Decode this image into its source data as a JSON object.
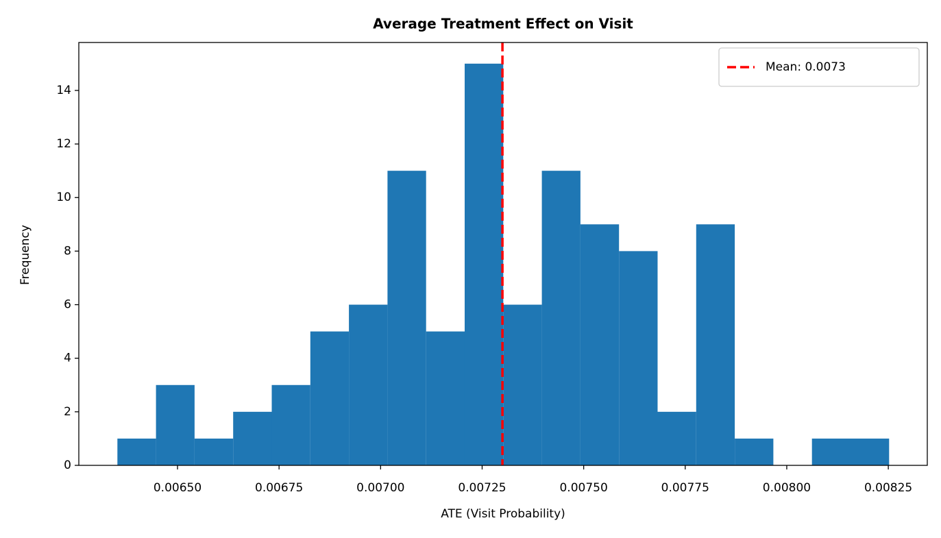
{
  "chart_data": {
    "type": "histogram",
    "title": "Average Treatment Effect on Visit",
    "x_label": "ATE (Visit Probability)",
    "y_label": "Frequency",
    "bins": [
      0.006352,
      0.006447,
      0.006542,
      0.006637,
      0.006732,
      0.006827,
      0.006922,
      0.007017,
      0.007112,
      0.007207,
      0.007302,
      0.007397,
      0.007492,
      0.007587,
      0.007682,
      0.007777,
      0.007872,
      0.007967,
      0.008062,
      0.008157,
      0.008252
    ],
    "values": [
      1,
      3,
      1,
      2,
      3,
      5,
      6,
      11,
      5,
      15,
      6,
      11,
      9,
      8,
      2,
      9,
      1,
      0,
      1,
      1
    ],
    "color": "#1f77b4",
    "mean_line": {
      "value": 0.0073,
      "label": "Mean: 0.0073",
      "color": "#ff0000"
    },
    "xlim": [
      0.006257,
      0.008346
    ],
    "ylim": [
      0,
      15.79
    ],
    "xticks": [
      {
        "value": 0.0065,
        "label": "0.00650"
      },
      {
        "value": 0.00675,
        "label": "0.00675"
      },
      {
        "value": 0.007,
        "label": "0.00700"
      },
      {
        "value": 0.00725,
        "label": "0.00725"
      },
      {
        "value": 0.0075,
        "label": "0.00750"
      },
      {
        "value": 0.00775,
        "label": "0.00775"
      },
      {
        "value": 0.008,
        "label": "0.00800"
      },
      {
        "value": 0.00825,
        "label": "0.00825"
      }
    ],
    "yticks": [
      0,
      2,
      4,
      6,
      8,
      10,
      12,
      14
    ],
    "legend": "upper right",
    "grid": false
  }
}
